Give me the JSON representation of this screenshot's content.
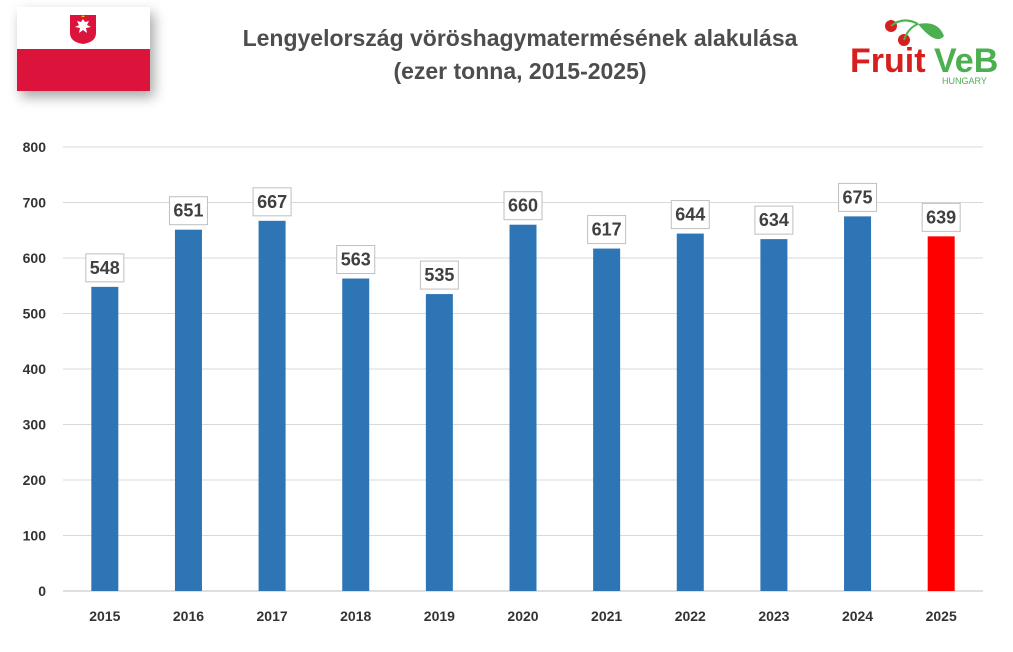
{
  "title_line1": "Lengyelország vöröshagymatermésének alakulása",
  "title_line2": "(ezer tonna, 2015-2025)",
  "logo": {
    "text_fruit": "Fruit",
    "text_veb": "VeB",
    "text_hungary": "HUNGARY",
    "color_green": "#4caf50",
    "color_red": "#d62020"
  },
  "flag": {
    "icon": "poland-flag-icon",
    "top_color": "#ffffff",
    "bottom_color": "#dc143c"
  },
  "chart_data": {
    "type": "bar",
    "title": "Lengyelország vöröshagymatermésének alakulása (ezer tonna, 2015-2025)",
    "categories": [
      "2015",
      "2016",
      "2017",
      "2018",
      "2019",
      "2020",
      "2021",
      "2022",
      "2023",
      "2024",
      "2025"
    ],
    "values": [
      548,
      651,
      667,
      563,
      535,
      660,
      617,
      644,
      634,
      675,
      639
    ],
    "colors": [
      "#2e75b6",
      "#2e75b6",
      "#2e75b6",
      "#2e75b6",
      "#2e75b6",
      "#2e75b6",
      "#2e75b6",
      "#2e75b6",
      "#2e75b6",
      "#2e75b6",
      "#ff0000"
    ],
    "yticks": [
      "0",
      "100",
      "200",
      "300",
      "400",
      "500",
      "600",
      "700",
      "800"
    ],
    "ylim": [
      0,
      800
    ],
    "xlabel": "",
    "ylabel": "",
    "grid": true,
    "legend": "none"
  }
}
